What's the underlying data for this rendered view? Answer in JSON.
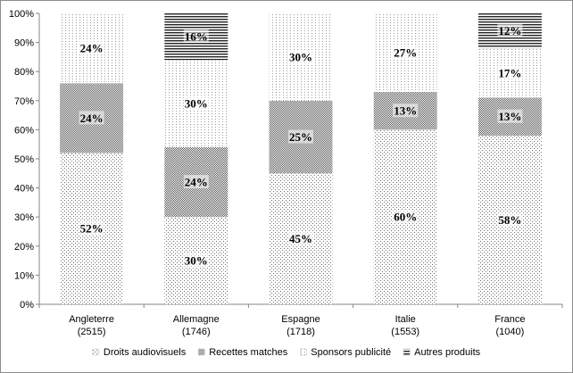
{
  "chart_data": {
    "type": "bar",
    "stacked": true,
    "percent_stacked": true,
    "categories": [
      "Angleterre",
      "Allemagne",
      "Espagne",
      "Italie",
      "France"
    ],
    "category_totals": [
      "(2515)",
      "(1746)",
      "(1718)",
      "(1553)",
      "(1040)"
    ],
    "series": [
      {
        "name": "Droits audiovisuels",
        "values": [
          52,
          30,
          45,
          60,
          58
        ],
        "labels": [
          "52%",
          "30%",
          "45%",
          "60%",
          "58%"
        ],
        "pattern": "dots-sparse"
      },
      {
        "name": "Recettes matches",
        "values": [
          24,
          24,
          25,
          13,
          13
        ],
        "labels": [
          "24%",
          "24%",
          "25%",
          "13%",
          "13%"
        ],
        "pattern": "dots-dense"
      },
      {
        "name": "Sponsors publicité",
        "values": [
          24,
          30,
          30,
          27,
          17
        ],
        "labels": [
          "24%",
          "30%",
          "30%",
          "27%",
          "17%"
        ],
        "pattern": "dots-light"
      },
      {
        "name": "Autres produits",
        "values": [
          0,
          16,
          0,
          0,
          12
        ],
        "labels": [
          "",
          "16%",
          "",
          "",
          "12%"
        ],
        "pattern": "hlines"
      }
    ],
    "y_ticks": [
      "0%",
      "10%",
      "20%",
      "30%",
      "40%",
      "50%",
      "60%",
      "70%",
      "80%",
      "90%",
      "100%"
    ],
    "ylim": [
      0,
      100
    ],
    "legend_position": "bottom",
    "grid": false
  }
}
